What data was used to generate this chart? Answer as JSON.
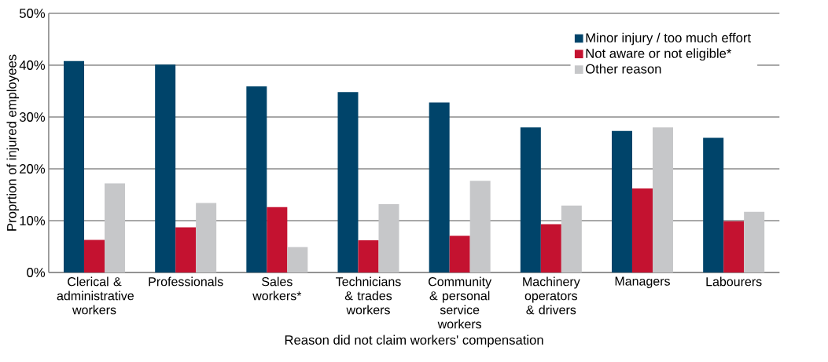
{
  "chart_data": {
    "type": "bar",
    "xlabel": "Reason did not claim workers' compensation",
    "ylabel": "Proprtion of injured employees",
    "categories": [
      "Clerical & administrative workers",
      "Professionals",
      "Sales workers*",
      "Technicians & trades workers",
      "Community & personal service workers",
      "Machinery operators & drivers",
      "Managers",
      "Labourers"
    ],
    "series": [
      {
        "name": "Minor injury / too much effort",
        "color": "#00446a",
        "values": [
          40.8,
          40.1,
          35.9,
          34.8,
          32.8,
          28.0,
          27.3,
          26.0
        ]
      },
      {
        "name": "Not aware or not eligible*",
        "color": "#c41230",
        "values": [
          6.3,
          8.7,
          12.6,
          6.2,
          7.1,
          9.3,
          16.2,
          9.9
        ]
      },
      {
        "name": "Other reason",
        "color": "#c6c7c9",
        "values": [
          17.2,
          13.4,
          4.9,
          13.2,
          17.7,
          12.9,
          28.0,
          11.7
        ]
      }
    ],
    "ylim": [
      0,
      50
    ],
    "yticks": [
      {
        "value": 0,
        "label": "0%"
      },
      {
        "value": 10,
        "label": "10%"
      },
      {
        "value": 20,
        "label": "20%"
      },
      {
        "value": 30,
        "label": "30%"
      },
      {
        "value": 40,
        "label": "40%"
      },
      {
        "value": 50,
        "label": "50%"
      }
    ],
    "grid": "y",
    "legend": "top right"
  }
}
